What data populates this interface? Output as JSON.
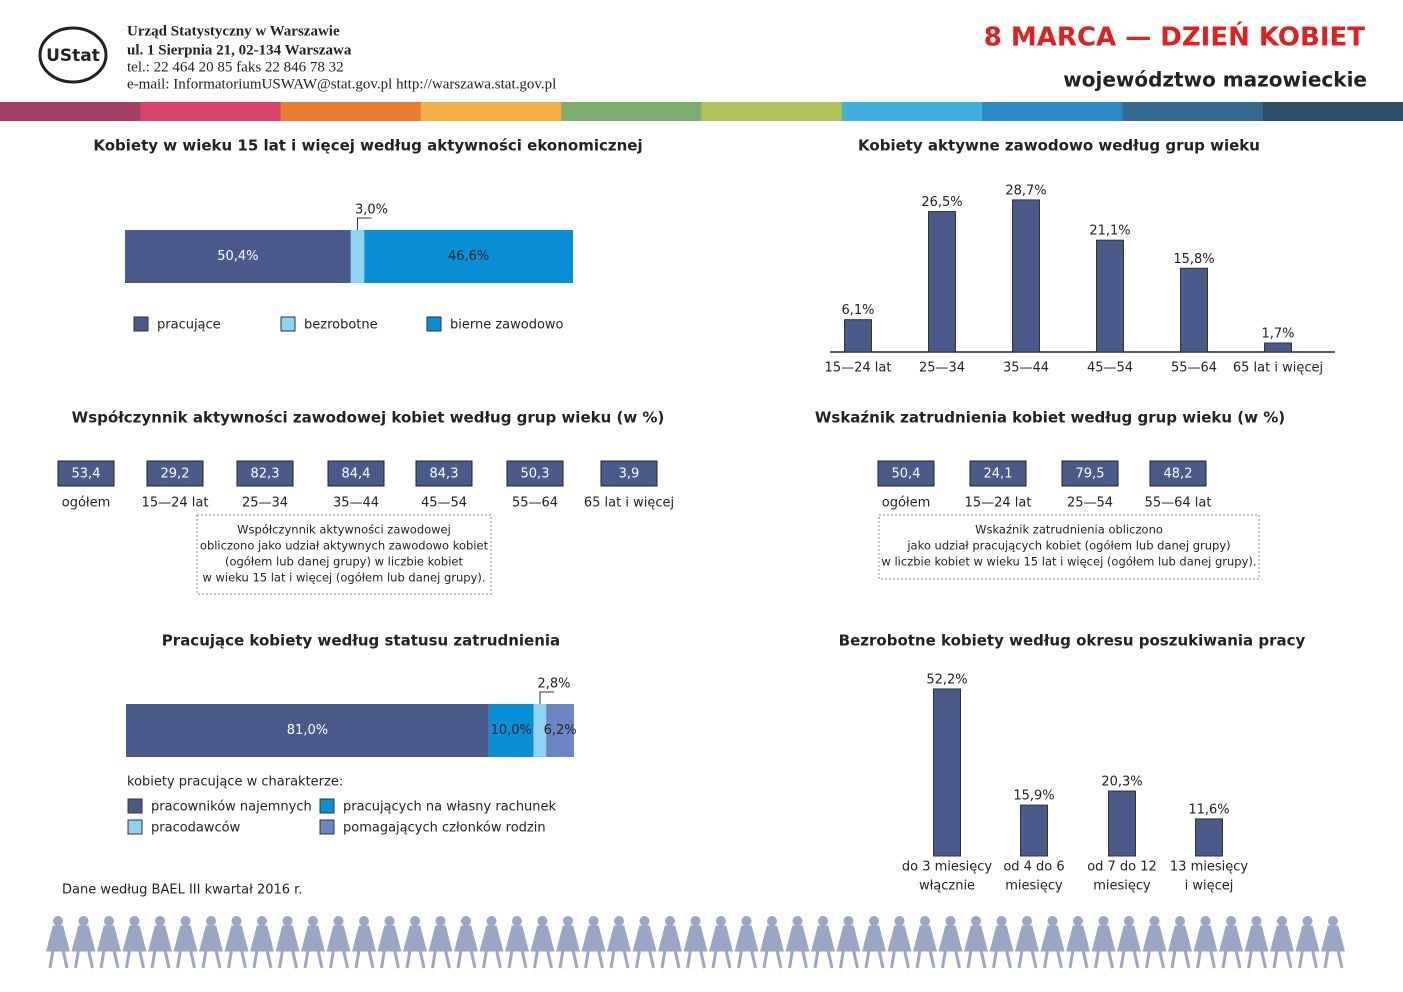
{
  "header": {
    "logo_text": "UStat",
    "org_lines": [
      "Urząd Statystyczny w Warszawie",
      "ul. 1 Sierpnia 21, 02-134 Warszawa",
      "tel.: 22 464 20 85  faks 22 846 78 32",
      "e-mail: InformatoriumUSWAW@stat.gov.pl  http://warszawa.stat.gov.pl"
    ],
    "title": "8 MARCA — DZIEŃ KOBIET",
    "subtitle": "województwo mazowieckie"
  },
  "chart_data": [
    {
      "type": "stacked_bar",
      "title": "Kobiety w wieku 15 lat i więcej według aktywności ekonomicznej",
      "series": [
        {
          "name": "pracujące",
          "color": "#4a5a8a",
          "values": [
            50.4
          ],
          "value_labels": [
            "50,4%"
          ]
        },
        {
          "name": "bezrobotne",
          "color": "#8ed3f0",
          "values": [
            3.0
          ],
          "value_labels": [
            "3,0%"
          ]
        },
        {
          "name": "bierne zawodowo",
          "color": "#0a8fd6",
          "values": [
            46.6
          ],
          "value_labels": [
            "46,6%"
          ]
        }
      ]
    },
    {
      "type": "bar",
      "title": "Kobiety aktywne zawodowo według grup wieku",
      "color": "#4a5a8a",
      "categories": [
        "15—24 lat",
        "25—34",
        "35—44",
        "45—54",
        "55—64",
        "65 lat i więcej"
      ],
      "values": [
        6.1,
        26.5,
        28.7,
        21.1,
        15.8,
        1.7
      ],
      "value_labels": [
        "6,1%",
        "26,5%",
        "28,7%",
        "21,1%",
        "15,8%",
        "1,7%"
      ]
    },
    {
      "type": "value_boxes",
      "title": "Współczynnik aktywności zawodowej kobiet według grup wieku (w %)",
      "color": "#4a5a8a",
      "categories": [
        "ogółem",
        "15—24 lat",
        "25—34",
        "35—44",
        "45—54",
        "55—64",
        "65 lat i więcej"
      ],
      "values": [
        53.4,
        29.2,
        82.3,
        84.4,
        84.3,
        50.3,
        3.9
      ],
      "value_labels": [
        "53,4",
        "29,2",
        "82,3",
        "84,4",
        "84,3",
        "50,3",
        "3,9"
      ],
      "note": [
        "Współczynnik aktywności zawodowej",
        "obliczono jako udział aktywnych zawodowo kobiet",
        "(ogółem lub danej grupy) w liczbie kobiet",
        "w wieku 15 lat i więcej (ogółem lub danej grupy)."
      ]
    },
    {
      "type": "value_boxes",
      "title": "Wskaźnik zatrudnienia kobiet według grup wieku (w %)",
      "color": "#4a5a8a",
      "categories": [
        "ogółem",
        "15—24 lat",
        "25—54",
        "55—64 lat"
      ],
      "values": [
        50.4,
        24.1,
        79.5,
        48.2
      ],
      "value_labels": [
        "50,4",
        "24,1",
        "79,5",
        "48,2"
      ],
      "note": [
        "Wskaźnik zatrudnienia obliczono",
        "jako udział pracujących kobiet (ogółem lub danej grupy)",
        "w liczbie kobiet w wieku 15 lat i więcej (ogółem lub danej grupy)."
      ]
    },
    {
      "type": "stacked_bar",
      "title": "Pracujące kobiety według statusu zatrudnienia",
      "legend_title": "kobiety pracujące w charakterze:",
      "series": [
        {
          "name": "pracowników najemnych",
          "color": "#4a5a8a",
          "values": [
            81.0
          ],
          "value_labels": [
            "81,0%"
          ]
        },
        {
          "name": "pracujących na własny rachunek",
          "color": "#0a8fd6",
          "values": [
            10.0
          ],
          "value_labels": [
            "10,0%"
          ]
        },
        {
          "name": "pracodawców",
          "color": "#8ed3f0",
          "values": [
            2.8
          ],
          "value_labels": [
            "2,8%"
          ]
        },
        {
          "name": "pomagających członków rodzin",
          "color": "#6b86c0",
          "values": [
            6.2
          ],
          "value_labels": [
            "6,2%"
          ]
        }
      ]
    },
    {
      "type": "bar",
      "title": "Bezrobotne kobiety według okresu poszukiwania pracy",
      "color": "#4a5a8a",
      "categories": [
        [
          "do 3 miesięcy",
          "włącznie"
        ],
        [
          "od 4 do 6",
          "miesięcy"
        ],
        [
          "od 7 do 12",
          "miesięcy"
        ],
        [
          "13 miesięcy",
          "i więcej"
        ]
      ],
      "values": [
        52.2,
        15.9,
        20.3,
        11.6
      ],
      "value_labels": [
        "52,2%",
        "15,9%",
        "20,3%",
        "11,6%"
      ]
    }
  ],
  "footer": "Dane według BAEL III kwartał 2016 r."
}
